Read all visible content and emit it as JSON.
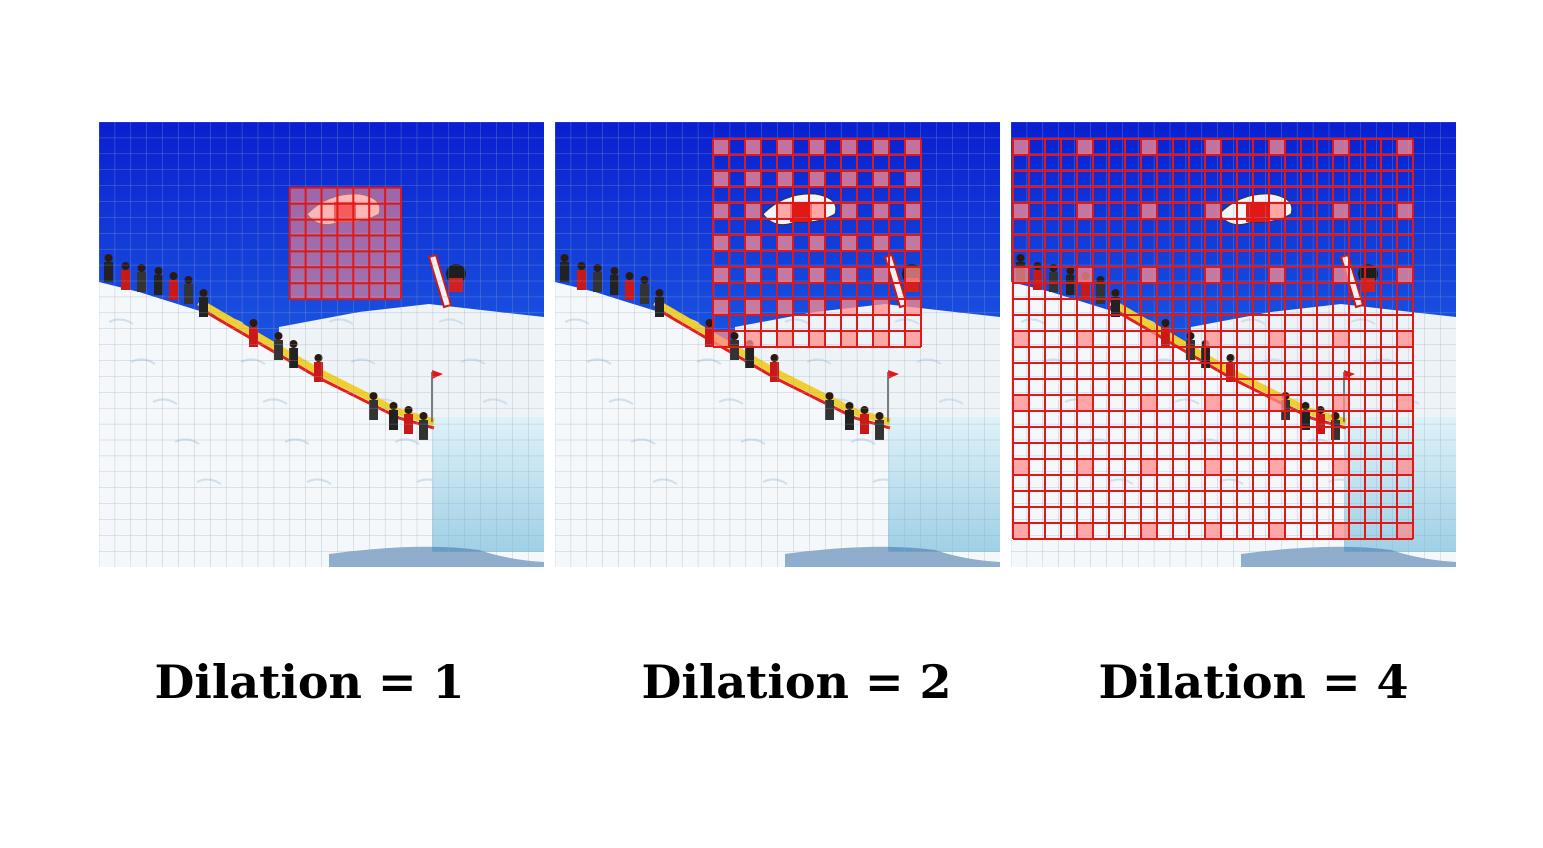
{
  "panels": [
    {
      "caption": "Dilation = 1",
      "dilation": 1
    },
    {
      "caption": "Dilation = 2",
      "dilation": 2
    },
    {
      "caption": "Dilation = 4",
      "dilation": 4
    }
  ],
  "colors": {
    "sky_top": "#0a1fd0",
    "sky_bottom": "#2a8af0",
    "snow": "#f4f8fb",
    "snow_shadow": "#cfe0ec",
    "kernel_line": "#e01818",
    "kernel_fill": "#ff8c8c",
    "grid_line": "#9aa6b2"
  }
}
